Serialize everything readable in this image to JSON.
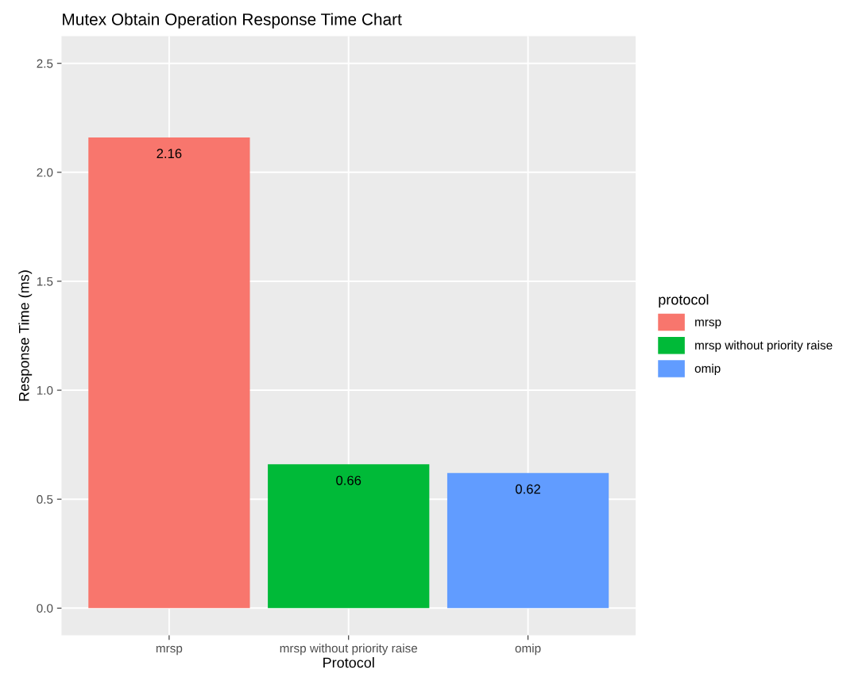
{
  "chart_data": {
    "type": "bar",
    "title": "Mutex Obtain Operation Response Time Chart",
    "xlabel": "Protocol",
    "ylabel": "Response Time (ms)",
    "legend_title": "protocol",
    "categories": [
      "mrsp",
      "mrsp without priority raise",
      "omip"
    ],
    "series": [
      {
        "name": "mrsp",
        "color": "#f8766d",
        "values": [
          2.16,
          null,
          null
        ]
      },
      {
        "name": "mrsp without priority raise",
        "color": "#00ba38",
        "values": [
          null,
          0.66,
          null
        ]
      },
      {
        "name": "omip",
        "color": "#619cff",
        "values": [
          null,
          null,
          0.62
        ]
      }
    ],
    "ylim": [
      -0.125,
      2.625
    ],
    "yticks": [
      {
        "value": 0,
        "label": "0.0"
      },
      {
        "value": 0.5,
        "label": "0.5"
      },
      {
        "value": 1,
        "label": "1.0"
      },
      {
        "value": 1.5,
        "label": "1.5"
      },
      {
        "value": 2,
        "label": "2.0"
      },
      {
        "value": 2.5,
        "label": "2.5"
      }
    ],
    "grid": true,
    "legend": "right",
    "data_labels": true
  }
}
